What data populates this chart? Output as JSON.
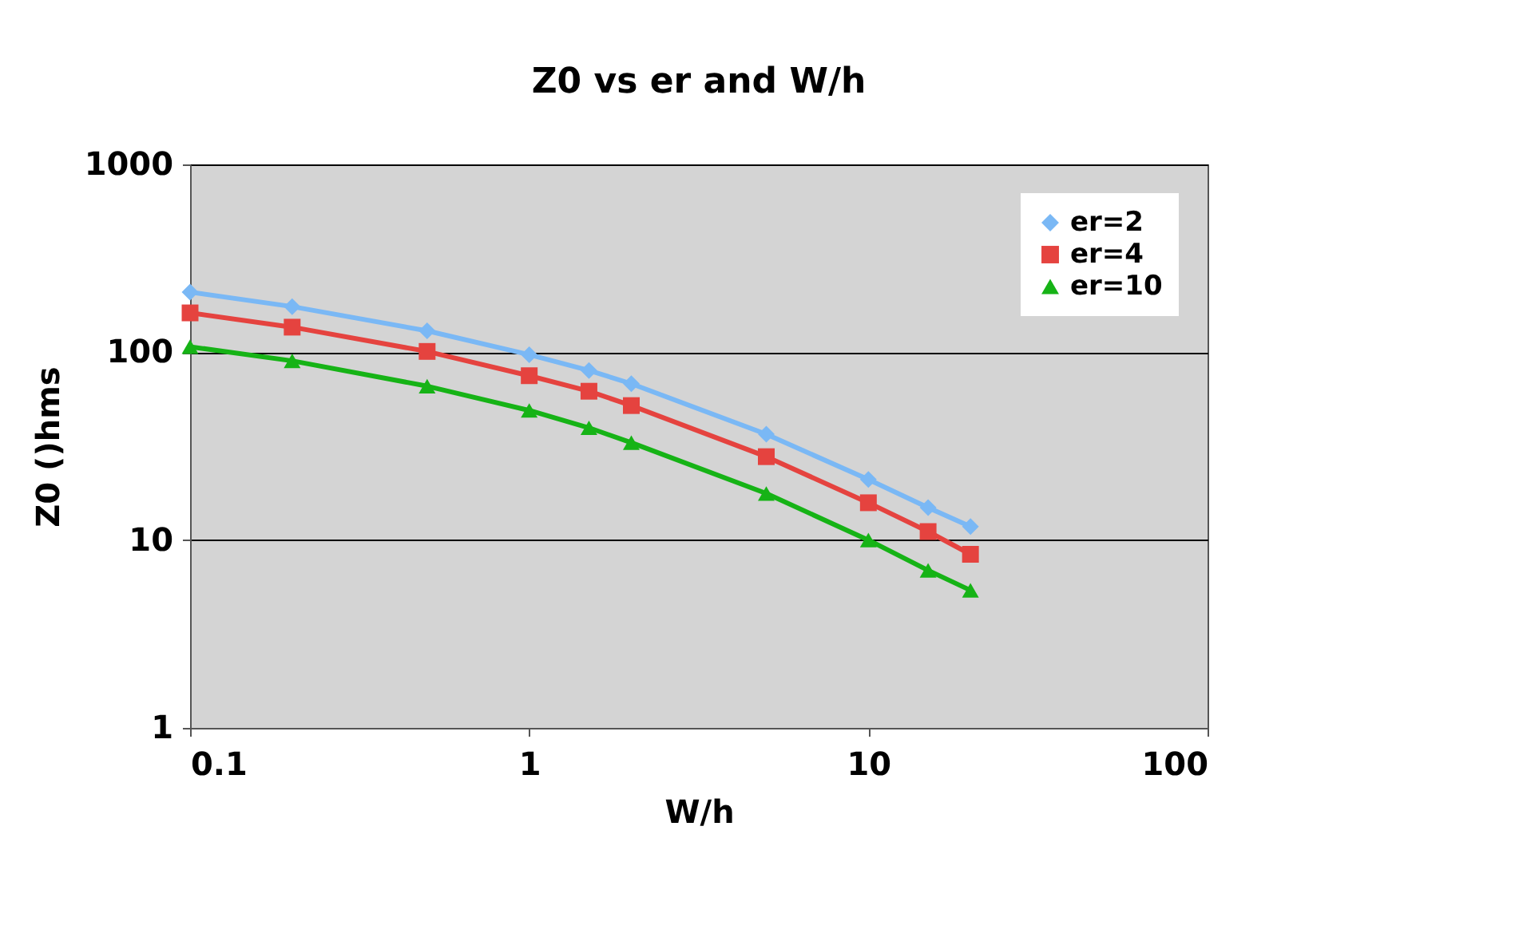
{
  "chart_data": {
    "type": "line",
    "title": "Z0 vs er and W/h",
    "xlabel": "W/h",
    "ylabel": "Z0 ()hms",
    "log": "xy",
    "x": [
      0.1,
      0.2,
      0.5,
      1,
      1.5,
      2,
      5,
      10,
      15,
      20
    ],
    "series": [
      {
        "name": "er=2",
        "color": "#7ab8f5",
        "marker": "diamond",
        "values": [
          209,
          175,
          130,
          97,
          80,
          68,
          36.6,
          21,
          14.9,
          11.8
        ]
      },
      {
        "name": "er=4",
        "color": "#e5433f",
        "marker": "square",
        "values": [
          162,
          136,
          101,
          75,
          62,
          52,
          27.8,
          15.8,
          11.1,
          8.4
        ]
      },
      {
        "name": "er=10",
        "color": "#16b316",
        "marker": "triangle",
        "values": [
          107,
          90,
          66,
          49,
          39.6,
          33,
          17.7,
          10,
          6.9,
          5.4
        ]
      }
    ],
    "xlim": [
      0.1,
      100
    ],
    "xticks": [
      0.1,
      1,
      10,
      100
    ],
    "ylim": [
      1,
      1000
    ],
    "yticks": [
      1,
      10,
      100,
      1000
    ],
    "grid": "y",
    "legend": "top right",
    "line_style": "solid"
  }
}
